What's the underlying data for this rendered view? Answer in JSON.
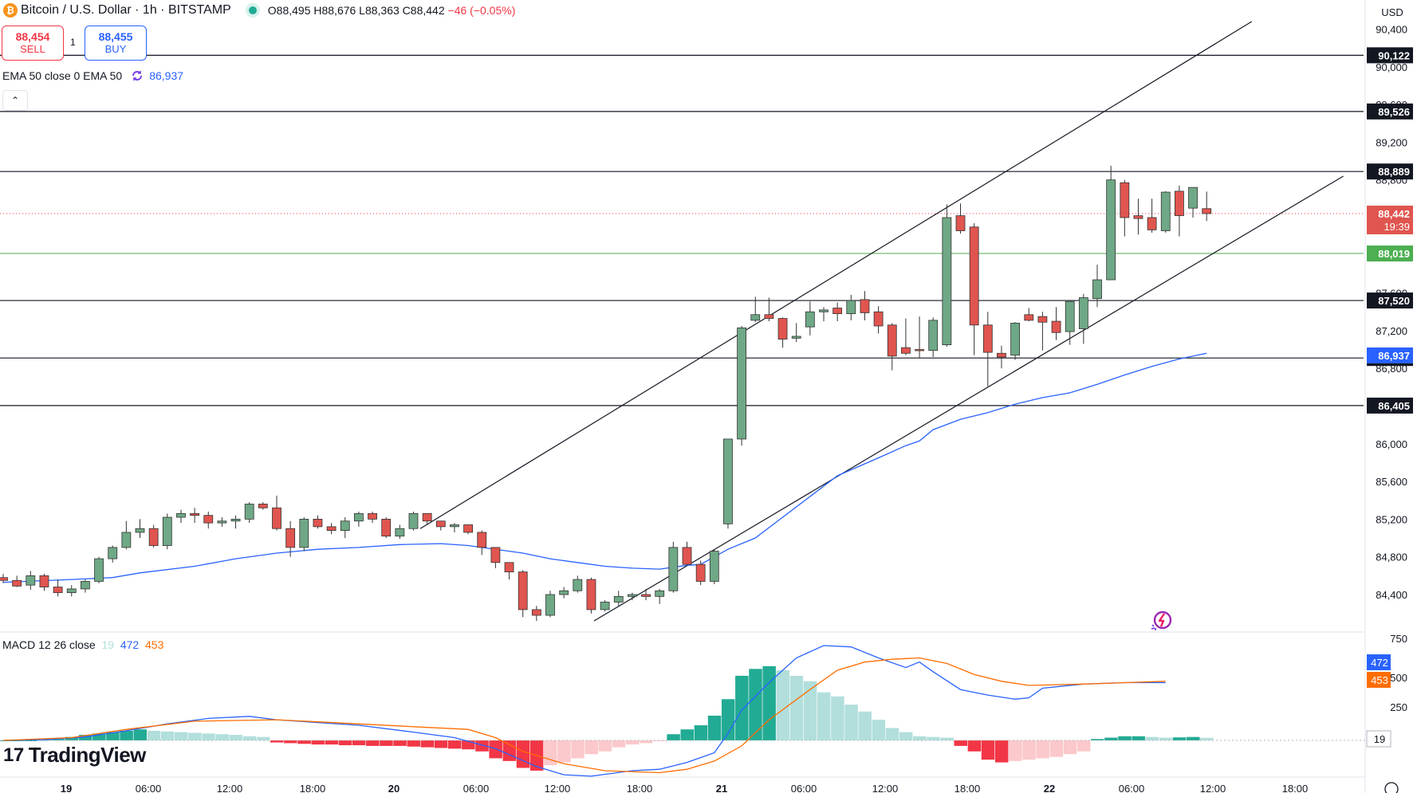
{
  "header": {
    "logo_letter": "₿",
    "symbol": "Bitcoin / U.S. Dollar · 1h · BITSTAMP",
    "ohlc": "O88,495 H88,676 L88,363 C88,442",
    "change": "−46 (−0.05%)"
  },
  "trade": {
    "sell_price": "88,454",
    "sell_label": "SELL",
    "spread": "1",
    "buy_price": "88,455",
    "buy_label": "BUY"
  },
  "ema_legend": {
    "label": "EMA 50 close 0 EMA 50",
    "value": "86,937"
  },
  "collapse_symbol": "⌃",
  "currency": "USD",
  "macd_legend": {
    "label": "MACD 12 26 close",
    "hist": "19",
    "macd": "472",
    "signal": "453"
  },
  "brand": {
    "mark": "17",
    "name": "TradingView"
  },
  "colors": {
    "up": "#6fa886",
    "down": "#e0554f",
    "ema": "#2962ff",
    "macd": "#2962ff",
    "signal": "#ff6d00",
    "hist_pos_strong": "#22ab94",
    "hist_pos_weak": "#b2dfdb",
    "hist_neg_strong": "#f23645",
    "hist_neg_weak": "#fbc8cb",
    "level_line": "#131722",
    "price_line": "#f23645",
    "green_line": "#4caf50"
  },
  "chart_data": {
    "type": "candlestick",
    "price_axis": {
      "ticks": [
        {
          "value": 90400,
          "label": "90,400"
        },
        {
          "value": 90000,
          "label": "90,000"
        },
        {
          "value": 89600,
          "label": "89,600"
        },
        {
          "value": 89200,
          "label": "89,200"
        },
        {
          "value": 88800,
          "label": "88,800"
        },
        {
          "value": 88400,
          "label": "88,400"
        },
        {
          "value": 87600,
          "label": "87,600"
        },
        {
          "value": 87200,
          "label": "87,200"
        },
        {
          "value": 86800,
          "label": "86,800"
        },
        {
          "value": 86400,
          "label": "86,400"
        },
        {
          "value": 86000,
          "label": "86,000"
        },
        {
          "value": 85600,
          "label": "85,600"
        },
        {
          "value": 85200,
          "label": "85,200"
        },
        {
          "value": 84800,
          "label": "84,800"
        },
        {
          "value": 84400,
          "label": "84,400"
        }
      ]
    },
    "time_axis": [
      "19",
      "06:00",
      "12:00",
      "18:00",
      "20",
      "06:00",
      "12:00",
      "18:00",
      "21",
      "06:00",
      "12:00",
      "18:00",
      "22",
      "06:00",
      "12:00",
      "18:00"
    ],
    "levels": [
      {
        "value": 90122,
        "label": "90,122"
      },
      {
        "value": 89526,
        "label": "89,526"
      },
      {
        "value": 88889,
        "label": "88,889"
      },
      {
        "value": 87520,
        "label": "87,520"
      },
      {
        "value": 86910,
        "label": "86,910"
      },
      {
        "value": 86405,
        "label": "86,405"
      }
    ],
    "last_price": {
      "value": 88442,
      "label": "88,442",
      "countdown": "19:39"
    },
    "green_level": {
      "value": 88019,
      "label": "88,019"
    },
    "ema_value": {
      "value": 86937,
      "label": "86,937"
    },
    "candles": [
      [
        84580,
        84620,
        84520,
        84550
      ],
      [
        84550,
        84600,
        84480,
        84490
      ],
      [
        84500,
        84650,
        84450,
        84600
      ],
      [
        84600,
        84620,
        84440,
        84480
      ],
      [
        84480,
        84560,
        84380,
        84420
      ],
      [
        84420,
        84500,
        84380,
        84460
      ],
      [
        84460,
        84560,
        84420,
        84540
      ],
      [
        84540,
        84800,
        84520,
        84780
      ],
      [
        84780,
        84920,
        84740,
        84900
      ],
      [
        84900,
        85180,
        84880,
        85060
      ],
      [
        85060,
        85200,
        85000,
        85100
      ],
      [
        85100,
        85140,
        84900,
        84920
      ],
      [
        84920,
        85260,
        84880,
        85220
      ],
      [
        85220,
        85300,
        85160,
        85260
      ],
      [
        85260,
        85320,
        85160,
        85240
      ],
      [
        85240,
        85280,
        85100,
        85160
      ],
      [
        85160,
        85220,
        85120,
        85180
      ],
      [
        85180,
        85240,
        85100,
        85200
      ],
      [
        85200,
        85380,
        85160,
        85360
      ],
      [
        85360,
        85380,
        85300,
        85320
      ],
      [
        85320,
        85450,
        85080,
        85100
      ],
      [
        85100,
        85180,
        84800,
        84900
      ],
      [
        84900,
        85220,
        84860,
        85200
      ],
      [
        85200,
        85240,
        85100,
        85120
      ],
      [
        85120,
        85160,
        85040,
        85080
      ],
      [
        85080,
        85220,
        85000,
        85180
      ],
      [
        85180,
        85280,
        85120,
        85260
      ],
      [
        85260,
        85280,
        85160,
        85200
      ],
      [
        85200,
        85220,
        85000,
        85020
      ],
      [
        85020,
        85140,
        84990,
        85100
      ],
      [
        85100,
        85280,
        85080,
        85260
      ],
      [
        85260,
        85260,
        85140,
        85180
      ],
      [
        85180,
        85180,
        85080,
        85120
      ],
      [
        85120,
        85160,
        85060,
        85140
      ],
      [
        85140,
        85140,
        85040,
        85060
      ],
      [
        85060,
        85080,
        84820,
        84900
      ],
      [
        84900,
        84900,
        84680,
        84740
      ],
      [
        84740,
        84740,
        84560,
        84640
      ],
      [
        84640,
        84660,
        84160,
        84240
      ],
      [
        84240,
        84280,
        84120,
        84180
      ],
      [
        84180,
        84440,
        84160,
        84400
      ],
      [
        84400,
        84480,
        84360,
        84440
      ],
      [
        84440,
        84600,
        84420,
        84560
      ],
      [
        84560,
        84580,
        84200,
        84240
      ],
      [
        84240,
        84340,
        84220,
        84320
      ],
      [
        84320,
        84440,
        84280,
        84380
      ],
      [
        84380,
        84420,
        84340,
        84400
      ],
      [
        84400,
        84460,
        84340,
        84380
      ],
      [
        84380,
        84460,
        84300,
        84440
      ],
      [
        84440,
        84960,
        84420,
        84900
      ],
      [
        84900,
        84960,
        84700,
        84720
      ],
      [
        84720,
        84760,
        84500,
        84540
      ],
      [
        84540,
        84880,
        84510,
        84860
      ],
      [
        85150,
        86020,
        85100,
        86050
      ],
      [
        86050,
        87250,
        85980,
        87230
      ],
      [
        87310,
        87560,
        87290,
        87370
      ],
      [
        87370,
        87550,
        87300,
        87330
      ],
      [
        87330,
        87340,
        87020,
        87110
      ],
      [
        87120,
        87280,
        87080,
        87140
      ],
      [
        87240,
        87510,
        87150,
        87400
      ],
      [
        87400,
        87450,
        87300,
        87420
      ],
      [
        87440,
        87500,
        87300,
        87380
      ],
      [
        87380,
        87580,
        87310,
        87520
      ],
      [
        87530,
        87620,
        87310,
        87390
      ],
      [
        87400,
        87460,
        87170,
        87250
      ],
      [
        87260,
        87280,
        86780,
        86930
      ],
      [
        87020,
        87330,
        86940,
        86960
      ],
      [
        87000,
        87350,
        86910,
        86990
      ],
      [
        86990,
        87340,
        86920,
        87310
      ],
      [
        87050,
        88540,
        87030,
        88400
      ],
      [
        88420,
        88550,
        88230,
        88260
      ],
      [
        88300,
        88340,
        86940,
        87260
      ],
      [
        87260,
        87400,
        86610,
        86970
      ],
      [
        86960,
        87040,
        86800,
        86920
      ],
      [
        86940,
        87290,
        86890,
        87280
      ],
      [
        87370,
        87440,
        87300,
        87310
      ],
      [
        87350,
        87400,
        86990,
        87290
      ],
      [
        87300,
        87450,
        87100,
        87180
      ],
      [
        87190,
        87480,
        87050,
        87510
      ],
      [
        87220,
        87590,
        87060,
        87550
      ],
      [
        87540,
        87900,
        87450,
        87740
      ],
      [
        87740,
        88950,
        87750,
        88800
      ],
      [
        88770,
        88800,
        88200,
        88400
      ],
      [
        88420,
        88600,
        88220,
        88390
      ],
      [
        88400,
        88600,
        88240,
        88270
      ],
      [
        88260,
        88680,
        88240,
        88670
      ],
      [
        88680,
        88740,
        88200,
        88420
      ],
      [
        88500,
        88680,
        88400,
        88720
      ],
      [
        88495,
        88676,
        88363,
        88442
      ]
    ],
    "ema50": [
      [
        0,
        84530
      ],
      [
        5,
        84560
      ],
      [
        8,
        84580
      ],
      [
        10,
        84630
      ],
      [
        14,
        84700
      ],
      [
        17,
        84780
      ],
      [
        20,
        84840
      ],
      [
        23,
        84880
      ],
      [
        26,
        84900
      ],
      [
        29,
        84930
      ],
      [
        32,
        84940
      ],
      [
        34,
        84920
      ],
      [
        35,
        84900
      ],
      [
        38,
        84840
      ],
      [
        40,
        84780
      ],
      [
        42,
        84740
      ],
      [
        44,
        84700
      ],
      [
        46,
        84680
      ],
      [
        48,
        84670
      ],
      [
        49,
        84690
      ],
      [
        50,
        84710
      ],
      [
        51,
        84720
      ],
      [
        52,
        84800
      ],
      [
        53,
        84880
      ],
      [
        55,
        85000
      ],
      [
        58,
        85330
      ],
      [
        61,
        85660
      ],
      [
        64,
        85850
      ],
      [
        66,
        85980
      ],
      [
        67,
        86030
      ],
      [
        68,
        86150
      ],
      [
        70,
        86260
      ],
      [
        72,
        86330
      ],
      [
        74,
        86420
      ],
      [
        76,
        86490
      ],
      [
        78,
        86540
      ],
      [
        80,
        86630
      ],
      [
        82,
        86730
      ],
      [
        84,
        86820
      ],
      [
        86,
        86900
      ],
      [
        88,
        86960
      ]
    ],
    "channel": {
      "upper": [
        [
          30.5,
          85100
        ],
        [
          91.3,
          90480
        ]
      ],
      "lower": [
        [
          43.2,
          84120
        ],
        [
          98.0,
          88840
        ]
      ]
    },
    "macd_axis": [
      {
        "value": 750,
        "label": "750"
      },
      {
        "value": 500,
        "label": "500"
      },
      {
        "value": 250,
        "label": "250"
      }
    ],
    "macd_series": [
      [
        0,
        0
      ],
      [
        3,
        5
      ],
      [
        6,
        25
      ],
      [
        9,
        70
      ],
      [
        12,
        120
      ],
      [
        15,
        160
      ],
      [
        18,
        175
      ],
      [
        20,
        150
      ],
      [
        23,
        130
      ],
      [
        26,
        110
      ],
      [
        30,
        60
      ],
      [
        33,
        20
      ],
      [
        36,
        -60
      ],
      [
        39,
        -190
      ],
      [
        41,
        -250
      ],
      [
        43,
        -260
      ],
      [
        46,
        -220
      ],
      [
        48,
        -210
      ],
      [
        50,
        -160
      ],
      [
        52,
        -90
      ],
      [
        53,
        50
      ],
      [
        54,
        220
      ],
      [
        56,
        420
      ],
      [
        58,
        600
      ],
      [
        60,
        690
      ],
      [
        62,
        680
      ],
      [
        64,
        600
      ],
      [
        66,
        530
      ],
      [
        67,
        570
      ],
      [
        68,
        500
      ],
      [
        70,
        370
      ],
      [
        72,
        330
      ],
      [
        74,
        300
      ],
      [
        75,
        310
      ],
      [
        76,
        380
      ],
      [
        79,
        410
      ],
      [
        82,
        420
      ],
      [
        85,
        420
      ]
    ],
    "signal_series": [
      [
        0,
        0
      ],
      [
        5,
        20
      ],
      [
        9,
        80
      ],
      [
        14,
        140
      ],
      [
        20,
        150
      ],
      [
        26,
        120
      ],
      [
        30,
        100
      ],
      [
        34,
        80
      ],
      [
        36,
        20
      ],
      [
        38,
        -80
      ],
      [
        41,
        -170
      ],
      [
        44,
        -220
      ],
      [
        48,
        -235
      ],
      [
        50,
        -210
      ],
      [
        52,
        -150
      ],
      [
        54,
        -40
      ],
      [
        56,
        150
      ],
      [
        59,
        370
      ],
      [
        61,
        510
      ],
      [
        63,
        570
      ],
      [
        65,
        590
      ],
      [
        67,
        600
      ],
      [
        69,
        560
      ],
      [
        71,
        480
      ],
      [
        73,
        430
      ],
      [
        75,
        400
      ],
      [
        79,
        410
      ],
      [
        85,
        430
      ]
    ],
    "macd_hist": [
      0,
      0,
      0,
      5,
      10,
      25,
      40,
      50,
      60,
      70,
      80,
      70,
      65,
      60,
      55,
      50,
      45,
      40,
      30,
      25,
      -15,
      -20,
      -25,
      -30,
      -30,
      -35,
      -35,
      -40,
      -40,
      -40,
      -45,
      -50,
      -55,
      -60,
      -65,
      -80,
      -130,
      -150,
      -200,
      -220,
      -180,
      -160,
      -130,
      -100,
      -80,
      -50,
      -30,
      -20,
      -5,
      45,
      80,
      110,
      180,
      300,
      470,
      520,
      540,
      510,
      470,
      430,
      350,
      320,
      260,
      210,
      150,
      90,
      60,
      30,
      25,
      20,
      -40,
      -80,
      -140,
      -160,
      -150,
      -140,
      -130,
      -120,
      -100,
      -80,
      10,
      20,
      30,
      30,
      25,
      20,
      22,
      25,
      19
    ]
  }
}
